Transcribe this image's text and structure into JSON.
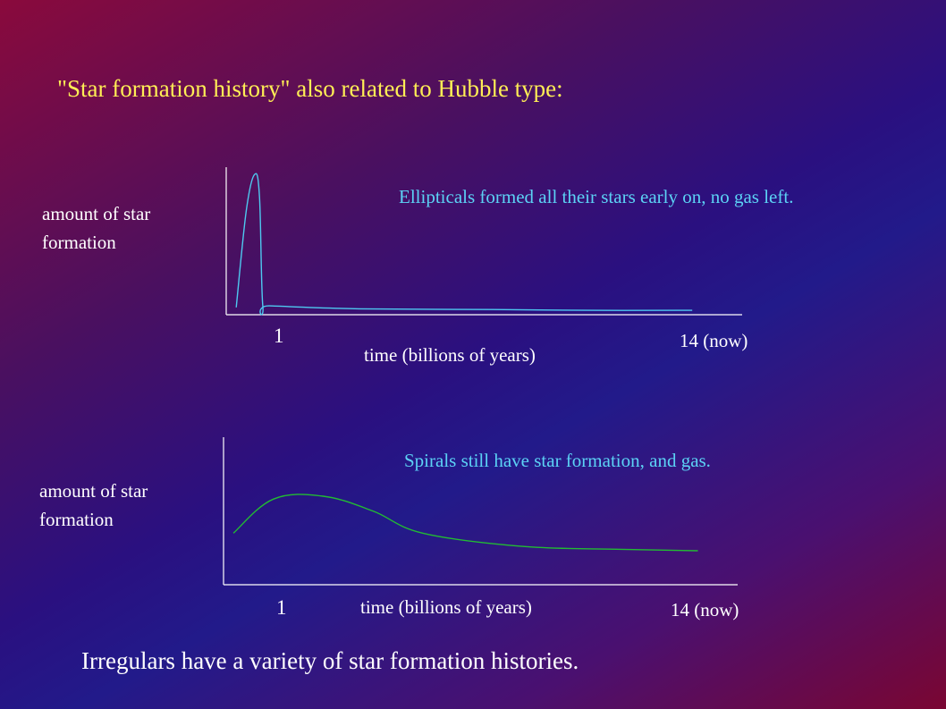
{
  "slide": {
    "title": "\"Star formation history\" also related to Hubble type:",
    "footer": "Irregulars have a variety of star formation histories."
  },
  "chart_data": [
    {
      "type": "line",
      "ylabel": "amount of star formation",
      "xlabel": "time (billions of years)",
      "x_tick_labels": [
        "1",
        "14 (now)"
      ],
      "annotation": "Ellipticals formed all their stars early on, no gas left.",
      "series": [
        {
          "color": "#4ec9f0",
          "x": [
            0.3,
            0.6,
            0.85,
            1.0,
            1.1,
            1.3,
            4,
            8,
            11,
            14
          ],
          "values": [
            0.05,
            0.7,
            0.95,
            0.8,
            0.06,
            0.06,
            0.04,
            0.035,
            0.03,
            0.03
          ]
        }
      ]
    },
    {
      "type": "line",
      "ylabel": "amount of star formation",
      "xlabel": "time (billions of years)",
      "x_tick_labels": [
        "1",
        "14 (now)"
      ],
      "annotation": "Spirals still have star formation, and gas.",
      "series": [
        {
          "color": "#22bb33",
          "x": [
            0.3,
            1.5,
            3,
            4.5,
            6,
            9,
            12,
            14.3
          ],
          "values": [
            0.35,
            0.58,
            0.6,
            0.5,
            0.35,
            0.26,
            0.24,
            0.23
          ]
        }
      ]
    }
  ]
}
